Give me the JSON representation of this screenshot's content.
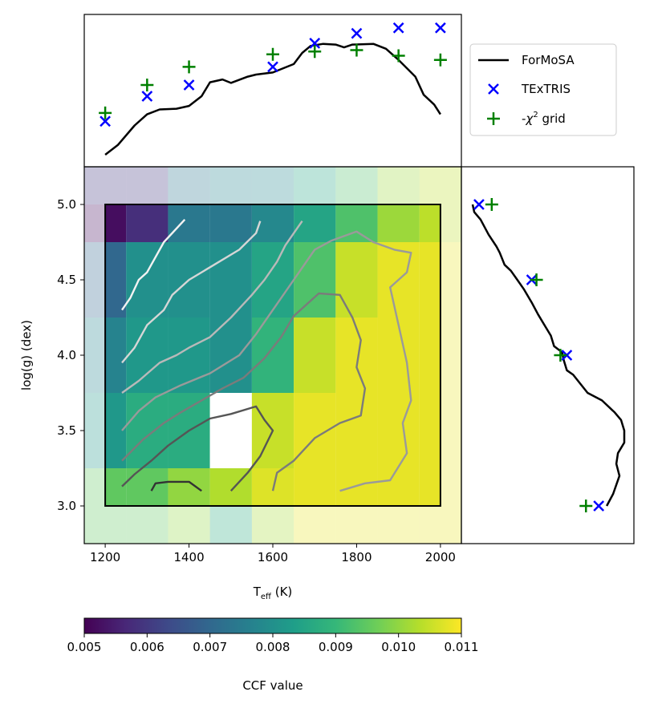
{
  "chart_data": [
    {
      "panel": "top-marginal",
      "type": "line",
      "x_domain": [
        1150,
        2050
      ],
      "series": [
        {
          "name": "ForMoSA",
          "kind": "line",
          "color": "#000000",
          "points": [
            [
              1200,
              0.04
            ],
            [
              1230,
              0.11
            ],
            [
              1270,
              0.25
            ],
            [
              1300,
              0.33
            ],
            [
              1330,
              0.365
            ],
            [
              1370,
              0.37
            ],
            [
              1400,
              0.39
            ],
            [
              1430,
              0.46
            ],
            [
              1450,
              0.56
            ],
            [
              1480,
              0.58
            ],
            [
              1500,
              0.555
            ],
            [
              1540,
              0.6
            ],
            [
              1560,
              0.615
            ],
            [
              1600,
              0.63
            ],
            [
              1650,
              0.69
            ],
            [
              1670,
              0.77
            ],
            [
              1690,
              0.82
            ],
            [
              1720,
              0.835
            ],
            [
              1750,
              0.83
            ],
            [
              1770,
              0.81
            ],
            [
              1790,
              0.83
            ],
            [
              1840,
              0.835
            ],
            [
              1870,
              0.8
            ],
            [
              1900,
              0.72
            ],
            [
              1940,
              0.6
            ],
            [
              1960,
              0.47
            ],
            [
              1985,
              0.4
            ],
            [
              2000,
              0.33
            ]
          ]
        },
        {
          "name": "TExTRIS",
          "kind": "x-marker",
          "color": "#0000ff",
          "points": [
            [
              1200,
              0.28
            ],
            [
              1300,
              0.46
            ],
            [
              1400,
              0.54
            ],
            [
              1600,
              0.67
            ],
            [
              1700,
              0.84
            ],
            [
              1800,
              0.91
            ],
            [
              1900,
              0.95
            ],
            [
              2000,
              0.95
            ]
          ]
        },
        {
          "name": "-χ² grid",
          "kind": "plus-marker",
          "color": "#008000",
          "points": [
            [
              1200,
              0.34
            ],
            [
              1300,
              0.54
            ],
            [
              1400,
              0.67
            ],
            [
              1600,
              0.76
            ],
            [
              1700,
              0.78
            ],
            [
              1800,
              0.79
            ],
            [
              1900,
              0.75
            ],
            [
              2000,
              0.72
            ]
          ]
        }
      ]
    },
    {
      "panel": "main-heatmap",
      "type": "heatmap",
      "xlabel_main": "T",
      "xlabel_sub": "eff",
      "xlabel_unit": " (K)",
      "ylabel": "log(g) (dex)",
      "xlim": [
        1150,
        2050
      ],
      "ylim": [
        2.75,
        5.25
      ],
      "x_ticks": [
        1200,
        1400,
        1600,
        1800,
        2000
      ],
      "x_tick_labels": [
        "1200",
        "1400",
        "1600",
        "1800",
        "2000"
      ],
      "y_ticks": [
        3.0,
        3.5,
        4.0,
        4.5,
        5.0
      ],
      "y_tick_labels": [
        "3.0",
        "3.5",
        "4.0",
        "4.5",
        "5.0"
      ],
      "cell_teff_edges": [
        1150,
        1250,
        1350,
        1450,
        1550,
        1650,
        1750,
        1850,
        1950,
        2050
      ],
      "cell_logg_edges": [
        5.25,
        5.0,
        4.75,
        4.25,
        3.75,
        3.25,
        3.0,
        2.75
      ],
      "ccf_values": [
        [
          0.006,
          0.006,
          0.0074,
          0.0077,
          0.0078,
          0.0085,
          0.0093,
          0.0101,
          0.0104
        ],
        [
          0.0052,
          0.0058,
          0.0074,
          0.0074,
          0.0078,
          0.0085,
          0.0093,
          0.0101,
          0.0104
        ],
        [
          0.007,
          0.008,
          0.008,
          0.008,
          0.0085,
          0.0093,
          0.0105,
          0.0108,
          0.0108
        ],
        [
          0.0077,
          0.0082,
          0.0082,
          0.008,
          0.0089,
          0.0105,
          0.0108,
          0.0108,
          0.0108
        ],
        [
          0.0082,
          0.0087,
          0.0087,
          null,
          0.0105,
          0.0108,
          0.0108,
          0.0108,
          0.0108
        ],
        [
          0.0095,
          0.0095,
          0.01,
          0.0103,
          0.0107,
          0.0108,
          0.0108,
          0.0108,
          0.0108
        ],
        [
          0.0095,
          0.0095,
          0.01,
          0.0087,
          0.0102,
          0.0108,
          0.0108,
          0.0108,
          0.0108
        ]
      ],
      "opaque_region": {
        "teff": [
          1200,
          2000
        ],
        "logg": [
          3.0,
          5.0
        ]
      },
      "contours": [
        {
          "level": 1,
          "color": "#f2f2f2",
          "points": [
            [
              1240,
              4.3
            ],
            [
              1260,
              4.38
            ],
            [
              1280,
              4.5
            ],
            [
              1300,
              4.55
            ],
            [
              1340,
              4.75
            ],
            [
              1390,
              4.9
            ]
          ]
        },
        {
          "level": 2,
          "color": "#d6d6d6",
          "points": [
            [
              1240,
              3.95
            ],
            [
              1270,
              4.05
            ],
            [
              1300,
              4.2
            ],
            [
              1340,
              4.3
            ],
            [
              1360,
              4.4
            ],
            [
              1400,
              4.5
            ],
            [
              1460,
              4.6
            ],
            [
              1520,
              4.7
            ],
            [
              1560,
              4.81
            ],
            [
              1570,
              4.89
            ]
          ]
        },
        {
          "level": 3,
          "color": "#b9b9b9",
          "points": [
            [
              1240,
              3.75
            ],
            [
              1280,
              3.83
            ],
            [
              1330,
              3.95
            ],
            [
              1370,
              4.0
            ],
            [
              1400,
              4.05
            ],
            [
              1450,
              4.12
            ],
            [
              1500,
              4.25
            ],
            [
              1550,
              4.4
            ],
            [
              1580,
              4.5
            ],
            [
              1610,
              4.62
            ],
            [
              1630,
              4.73
            ],
            [
              1670,
              4.89
            ]
          ]
        },
        {
          "level": 4,
          "color": "#9a9a9a",
          "points": [
            [
              1240,
              3.5
            ],
            [
              1280,
              3.63
            ],
            [
              1320,
              3.72
            ],
            [
              1380,
              3.8
            ],
            [
              1450,
              3.88
            ],
            [
              1520,
              4.0
            ],
            [
              1560,
              4.14
            ],
            [
              1600,
              4.3
            ],
            [
              1650,
              4.5
            ],
            [
              1700,
              4.7
            ],
            [
              1740,
              4.76
            ],
            [
              1800,
              4.82
            ],
            [
              1840,
              4.75
            ],
            [
              1890,
              4.7
            ],
            [
              1930,
              4.68
            ],
            [
              1920,
              4.55
            ],
            [
              1880,
              4.45
            ],
            [
              1900,
              4.2
            ],
            [
              1920,
              3.95
            ],
            [
              1930,
              3.7
            ],
            [
              1910,
              3.55
            ],
            [
              1920,
              3.35
            ],
            [
              1880,
              3.17
            ],
            [
              1820,
              3.15
            ],
            [
              1760,
              3.1
            ]
          ]
        },
        {
          "level": 5,
          "color": "#7b7b7b",
          "points": [
            [
              1240,
              3.3
            ],
            [
              1290,
              3.44
            ],
            [
              1340,
              3.55
            ],
            [
              1380,
              3.62
            ],
            [
              1430,
              3.7
            ],
            [
              1480,
              3.78
            ],
            [
              1530,
              3.85
            ],
            [
              1580,
              3.98
            ],
            [
              1620,
              4.12
            ],
            [
              1650,
              4.26
            ],
            [
              1710,
              4.41
            ],
            [
              1760,
              4.4
            ],
            [
              1790,
              4.25
            ],
            [
              1810,
              4.1
            ],
            [
              1800,
              3.92
            ],
            [
              1820,
              3.78
            ],
            [
              1810,
              3.6
            ],
            [
              1760,
              3.55
            ],
            [
              1700,
              3.45
            ],
            [
              1650,
              3.3
            ],
            [
              1610,
              3.22
            ],
            [
              1600,
              3.1
            ]
          ]
        },
        {
          "level": 6,
          "color": "#555555",
          "points": [
            [
              1240,
              3.13
            ],
            [
              1270,
              3.21
            ],
            [
              1310,
              3.3
            ],
            [
              1350,
              3.4
            ],
            [
              1400,
              3.5
            ],
            [
              1450,
              3.58
            ],
            [
              1500,
              3.61
            ],
            [
              1560,
              3.66
            ],
            [
              1580,
              3.57
            ],
            [
              1600,
              3.5
            ],
            [
              1570,
              3.33
            ],
            [
              1540,
              3.22
            ],
            [
              1500,
              3.1
            ]
          ]
        },
        {
          "level": 7,
          "color": "#333333",
          "points": [
            [
              1310,
              3.1
            ],
            [
              1320,
              3.15
            ],
            [
              1350,
              3.16
            ],
            [
              1400,
              3.16
            ],
            [
              1430,
              3.1
            ]
          ]
        }
      ]
    },
    {
      "panel": "right-marginal",
      "type": "line",
      "y_domain": [
        2.75,
        5.25
      ],
      "series": [
        {
          "name": "ForMoSA",
          "kind": "line",
          "color": "#000000",
          "points": [
            [
              0.03,
              5.0
            ],
            [
              0.04,
              4.95
            ],
            [
              0.08,
              4.9
            ],
            [
              0.13,
              4.8
            ],
            [
              0.18,
              4.72
            ],
            [
              0.2,
              4.68
            ],
            [
              0.23,
              4.6
            ],
            [
              0.27,
              4.56
            ],
            [
              0.31,
              4.5
            ],
            [
              0.35,
              4.44
            ],
            [
              0.4,
              4.35
            ],
            [
              0.44,
              4.27
            ],
            [
              0.48,
              4.2
            ],
            [
              0.52,
              4.13
            ],
            [
              0.54,
              4.06
            ],
            [
              0.59,
              4.02
            ],
            [
              0.6,
              3.97
            ],
            [
              0.62,
              3.9
            ],
            [
              0.66,
              3.87
            ],
            [
              0.75,
              3.75
            ],
            [
              0.84,
              3.7
            ],
            [
              0.92,
              3.62
            ],
            [
              0.96,
              3.57
            ],
            [
              0.98,
              3.5
            ],
            [
              0.98,
              3.42
            ],
            [
              0.94,
              3.35
            ],
            [
              0.93,
              3.28
            ],
            [
              0.95,
              3.2
            ],
            [
              0.91,
              3.08
            ],
            [
              0.87,
              3.0
            ]
          ]
        },
        {
          "name": "TExTRIS",
          "kind": "x-marker",
          "color": "#0000ff",
          "points": [
            [
              0.07,
              5.0
            ],
            [
              0.4,
              4.5
            ],
            [
              0.62,
              4.0
            ],
            [
              0.82,
              3.0
            ]
          ]
        },
        {
          "name": "-χ² grid",
          "kind": "plus-marker",
          "color": "#008000",
          "points": [
            [
              0.15,
              5.0
            ],
            [
              0.43,
              4.5
            ],
            [
              0.58,
              4.0
            ],
            [
              0.74,
              3.0
            ]
          ]
        }
      ]
    },
    {
      "panel": "colorbar",
      "type": "colorbar",
      "label": "CCF value",
      "range": [
        0.005,
        0.011
      ],
      "ticks": [
        0.005,
        0.006,
        0.007,
        0.008,
        0.009,
        0.01,
        0.011
      ],
      "tick_labels": [
        "0.005",
        "0.006",
        "0.007",
        "0.008",
        "0.009",
        "0.010",
        "0.011"
      ],
      "colormap": "viridis"
    }
  ],
  "legend": {
    "position": "right of top panel",
    "entries": [
      {
        "label": "ForMoSA",
        "kind": "line",
        "color": "#000000"
      },
      {
        "label": "TExTRIS",
        "kind": "x-marker",
        "color": "#0000ff"
      },
      {
        "label": "-χ² grid",
        "kind": "plus-marker",
        "color": "#008000"
      }
    ],
    "chi_label": {
      "pre": "-",
      "symbol": "χ",
      "sup": "2",
      "post": " grid"
    }
  },
  "colors": {
    "viridis": [
      "#440154",
      "#482878",
      "#3e4a89",
      "#31688e",
      "#26828e",
      "#1f9e89",
      "#35b779",
      "#6ece58",
      "#b5de2b",
      "#fde725"
    ]
  }
}
